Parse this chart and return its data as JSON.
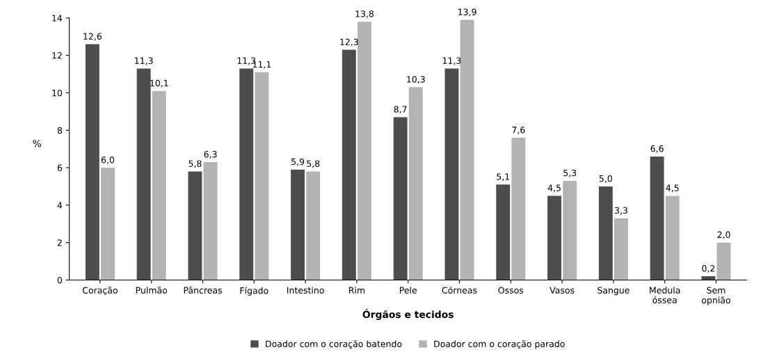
{
  "chart_data": {
    "type": "bar",
    "xlabel": "Órgãos e tecidos",
    "ylabel": "%",
    "categories": [
      "Coração",
      "Pulmão",
      "Pâncreas",
      "Fígado",
      "Intestino",
      "Rim",
      "Pele",
      "Córneas",
      "Ossos",
      "Vasos",
      "Sangue",
      "Medula\nóssea",
      "Sem\nopnião"
    ],
    "series": [
      {
        "name": "Doador com o coração batendo",
        "color": "#4d4d4d",
        "values": [
          12.6,
          11.3,
          5.8,
          11.3,
          5.9,
          12.3,
          8.7,
          11.3,
          5.1,
          4.5,
          5.0,
          6.6,
          0.2
        ],
        "value_labels": [
          "12,6",
          "11,3",
          "5,8",
          "11,3",
          "5,9",
          "12,3",
          "8,7",
          "11,3",
          "5,1",
          "4,5",
          "5,0",
          "6,6",
          "0,2"
        ]
      },
      {
        "name": "Doador com o coração parado",
        "color": "#b3b3b3",
        "values": [
          6.0,
          10.1,
          6.3,
          11.1,
          5.8,
          13.8,
          10.3,
          13.9,
          7.6,
          5.3,
          3.3,
          4.5,
          2.0
        ],
        "value_labels": [
          "6,0",
          "10,1",
          "6,3",
          "11,1",
          "5,8",
          "13,8",
          "10,3",
          "13,9",
          "7,6",
          "5,3",
          "3,3",
          "4,5",
          "2,0"
        ]
      }
    ],
    "ylim": [
      0,
      14
    ],
    "yticks": [
      0,
      2,
      4,
      6,
      8,
      10,
      12,
      14
    ],
    "grid": false,
    "legend": "bottom"
  }
}
